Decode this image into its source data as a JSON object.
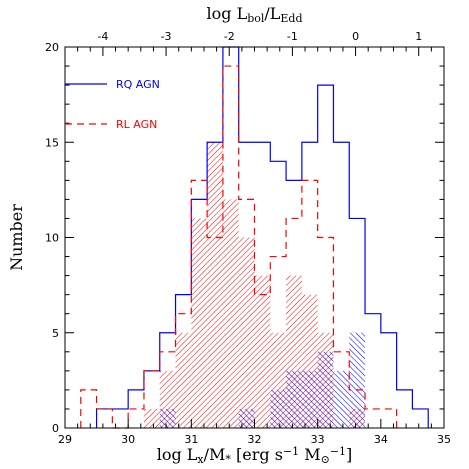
{
  "chart_data": {
    "type": "histogram",
    "bin_width": 0.25,
    "x_bottom": {
      "label_parts": [
        {
          "t": "log L",
          "s": "n"
        },
        {
          "t": "x",
          "s": "sub"
        },
        {
          "t": "/M",
          "s": "n"
        },
        {
          "t": "*",
          "s": "sub"
        },
        {
          "t": " [erg s",
          "s": "n"
        },
        {
          "t": "−1",
          "s": "sup"
        },
        {
          "t": " M",
          "s": "n"
        },
        {
          "t": "⊙",
          "s": "sub"
        },
        {
          "t": "−1",
          "s": "sup"
        },
        {
          "t": "]",
          "s": "n"
        }
      ],
      "range": [
        29,
        35
      ],
      "ticks": [
        29,
        30,
        31,
        32,
        33,
        34,
        35
      ]
    },
    "x_top": {
      "label_parts": [
        {
          "t": "log L",
          "s": "n"
        },
        {
          "t": "bol",
          "s": "sub"
        },
        {
          "t": "/L",
          "s": "n"
        },
        {
          "t": "Edd",
          "s": "sub"
        }
      ],
      "ticks": [
        -4,
        -3,
        -2,
        -1,
        0,
        1
      ],
      "offset_from_bottom": -33.6
    },
    "y": {
      "label": "Number",
      "range": [
        0,
        20
      ],
      "ticks": [
        0,
        5,
        10,
        15,
        20
      ]
    },
    "series": [
      {
        "name": "RQ AGN",
        "color": "#0000ff",
        "line": "solid",
        "edges": [
          29.5,
          29.75,
          30.0,
          30.25,
          30.5,
          30.75,
          31.0,
          31.25,
          31.5,
          31.75,
          32.0,
          32.25,
          32.5,
          32.75,
          33.0,
          33.25,
          33.5,
          33.75,
          34.0,
          34.25,
          34.5,
          34.75
        ],
        "counts": [
          1,
          1,
          2,
          3,
          5,
          7,
          12,
          15,
          20,
          15,
          15,
          14,
          13,
          15,
          18,
          15,
          11,
          6,
          5,
          2,
          1
        ],
        "hatched_counts": [
          0,
          0,
          0,
          0,
          1,
          0,
          0,
          0,
          0,
          1,
          0,
          2,
          3,
          3,
          4,
          3,
          5,
          0,
          0,
          0,
          0
        ],
        "hatch": "up-right"
      },
      {
        "name": "RL AGN",
        "color": "#ff0000",
        "line": "dashed",
        "edges": [
          29.25,
          29.5,
          29.75,
          30.0,
          30.25,
          30.5,
          30.75,
          31.0,
          31.25,
          31.5,
          31.75,
          32.0,
          32.25,
          32.5,
          32.75,
          33.0,
          33.25,
          33.5,
          33.75,
          34.0,
          34.25
        ],
        "counts": [
          2,
          1,
          0,
          1,
          3,
          4,
          6,
          13,
          10,
          19,
          12,
          7,
          9,
          11,
          13,
          10,
          4,
          2,
          1,
          1
        ],
        "hatched_counts": [
          0,
          0,
          0,
          0,
          1,
          3,
          5,
          11,
          15,
          12,
          10,
          8,
          5,
          8,
          7,
          5,
          0,
          1,
          0,
          0
        ],
        "hatch": "down-right"
      }
    ]
  }
}
